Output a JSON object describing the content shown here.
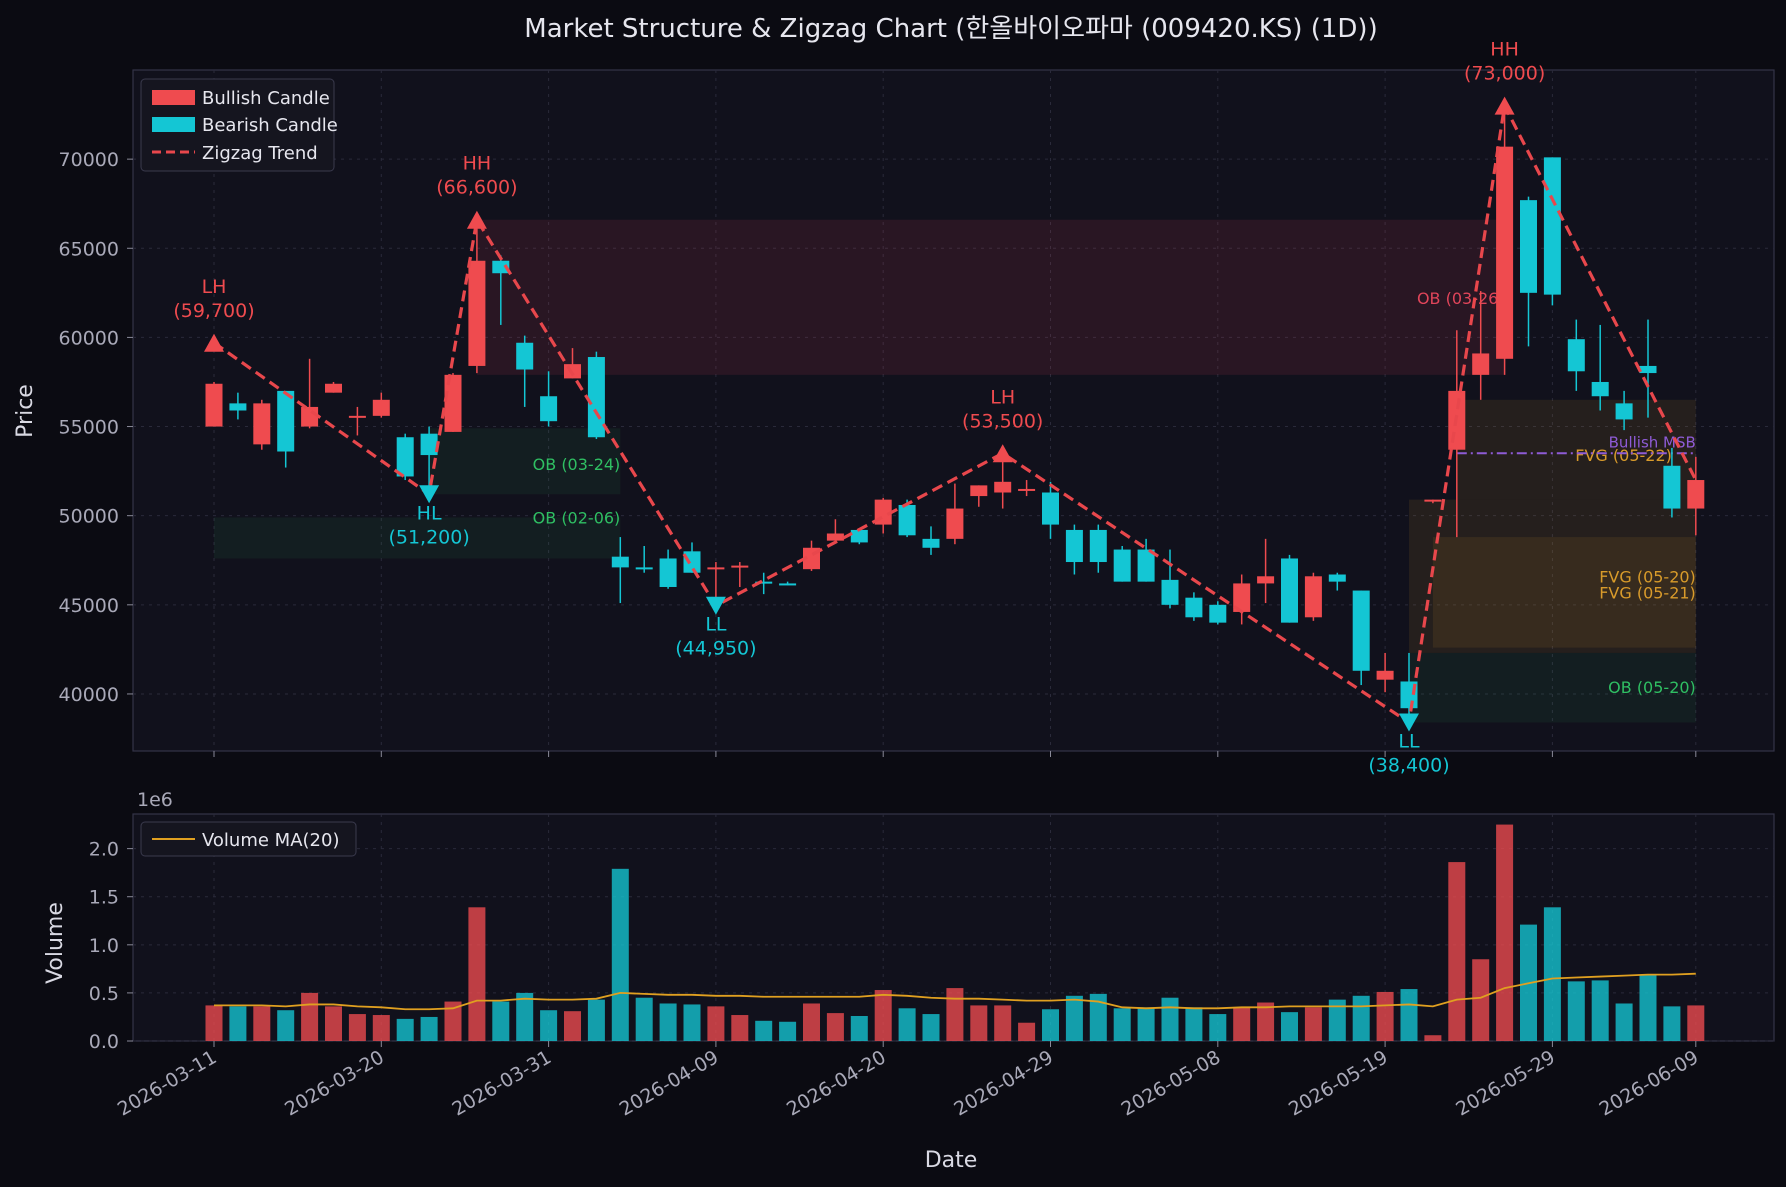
{
  "title": "Market Structure & Zigzag Chart (한올바이오파마 (009420.KS) (1D))",
  "colors": {
    "bull": "#ef4b4f",
    "bear": "#14c6d4",
    "zigzag": "#e8474c",
    "ob_bull": "#2fbf63",
    "ob_bear": "#e0455a",
    "fvg": "#d99b2b",
    "msb": "#8e5bd6",
    "vol_ma": "#e0a020"
  },
  "price_axis": {
    "label": "Price",
    "ylim": [
      36800,
      75000
    ],
    "ticks": [
      40000,
      45000,
      50000,
      55000,
      60000,
      65000,
      70000
    ]
  },
  "volume_axis": {
    "label": "Volume",
    "multiplier": "1e6",
    "ylim": [
      0,
      2.36
    ],
    "ticks": [
      "0.0",
      "0.5",
      "1.0",
      "1.5",
      "2.0"
    ]
  },
  "x_axis": {
    "label": "Date",
    "ticks": [
      {
        "i": 0,
        "label": "2026-03-11"
      },
      {
        "i": 7,
        "label": "2026-03-20"
      },
      {
        "i": 14,
        "label": "2026-03-31"
      },
      {
        "i": 21,
        "label": "2026-04-09"
      },
      {
        "i": 28,
        "label": "2026-04-20"
      },
      {
        "i": 35,
        "label": "2026-04-29"
      },
      {
        "i": 42,
        "label": "2026-05-08"
      },
      {
        "i": 49,
        "label": "2026-05-19"
      },
      {
        "i": 56,
        "label": "2026-05-29"
      },
      {
        "i": 62,
        "label": "2026-06-09"
      }
    ]
  },
  "legend_price": [
    {
      "label": "Bullish Candle",
      "kind": "bull"
    },
    {
      "label": "Bearish Candle",
      "kind": "bear"
    },
    {
      "label": "Zigzag Trend",
      "kind": "zigzag"
    }
  ],
  "legend_volume": [
    {
      "label": "Volume MA(20)",
      "kind": "vol_ma"
    }
  ],
  "chart_data": {
    "type": "candlestick",
    "candles": [
      {
        "o": 55000,
        "h": 57500,
        "l": 55000,
        "c": 57400
      },
      {
        "o": 56300,
        "h": 56900,
        "l": 55400,
        "c": 55900
      },
      {
        "o": 54000,
        "h": 56500,
        "l": 53700,
        "c": 56300
      },
      {
        "o": 57000,
        "h": 57000,
        "l": 52700,
        "c": 53600
      },
      {
        "o": 55000,
        "h": 58800,
        "l": 54900,
        "c": 56100
      },
      {
        "o": 56900,
        "h": 57500,
        "l": 56900,
        "c": 57400
      },
      {
        "o": 55600,
        "h": 56100,
        "l": 54500,
        "c": 55600
      },
      {
        "o": 55600,
        "h": 56900,
        "l": 55500,
        "c": 56500
      },
      {
        "o": 54400,
        "h": 54600,
        "l": 52000,
        "c": 52200
      },
      {
        "o": 54600,
        "h": 55000,
        "l": 51200,
        "c": 53400
      },
      {
        "o": 54700,
        "h": 58000,
        "l": 54700,
        "c": 57900
      },
      {
        "o": 58400,
        "h": 66600,
        "l": 58000,
        "c": 64300
      },
      {
        "o": 64300,
        "h": 64600,
        "l": 60700,
        "c": 63600
      },
      {
        "o": 59700,
        "h": 60100,
        "l": 56100,
        "c": 58200
      },
      {
        "o": 56700,
        "h": 58100,
        "l": 55000,
        "c": 55300
      },
      {
        "o": 57700,
        "h": 59400,
        "l": 57700,
        "c": 58500
      },
      {
        "o": 58900,
        "h": 59200,
        "l": 54300,
        "c": 54400
      },
      {
        "o": 47700,
        "h": 48800,
        "l": 45100,
        "c": 47100
      },
      {
        "o": 47100,
        "h": 48300,
        "l": 46800,
        "c": 47000
      },
      {
        "o": 47600,
        "h": 48100,
        "l": 45900,
        "c": 46000
      },
      {
        "o": 48000,
        "h": 48500,
        "l": 46800,
        "c": 46800
      },
      {
        "o": 47100,
        "h": 47400,
        "l": 44950,
        "c": 47100
      },
      {
        "o": 47100,
        "h": 47400,
        "l": 46000,
        "c": 47200
      },
      {
        "o": 46300,
        "h": 46800,
        "l": 45600,
        "c": 46200
      },
      {
        "o": 46200,
        "h": 46300,
        "l": 46100,
        "c": 46100
      },
      {
        "o": 47000,
        "h": 48600,
        "l": 46900,
        "c": 48200
      },
      {
        "o": 48600,
        "h": 49800,
        "l": 48500,
        "c": 49000
      },
      {
        "o": 49200,
        "h": 49300,
        "l": 48400,
        "c": 48500
      },
      {
        "o": 49500,
        "h": 51000,
        "l": 49000,
        "c": 50900
      },
      {
        "o": 50600,
        "h": 50900,
        "l": 48800,
        "c": 48900
      },
      {
        "o": 48700,
        "h": 49400,
        "l": 47800,
        "c": 48200
      },
      {
        "o": 48700,
        "h": 51800,
        "l": 48400,
        "c": 50400
      },
      {
        "o": 51100,
        "h": 51700,
        "l": 50500,
        "c": 51700
      },
      {
        "o": 51300,
        "h": 53500,
        "l": 50400,
        "c": 51900
      },
      {
        "o": 51400,
        "h": 52000,
        "l": 51100,
        "c": 51500
      },
      {
        "o": 51300,
        "h": 51900,
        "l": 48700,
        "c": 49500
      },
      {
        "o": 49200,
        "h": 49500,
        "l": 46700,
        "c": 47400
      },
      {
        "o": 49200,
        "h": 49500,
        "l": 46800,
        "c": 47400
      },
      {
        "o": 48100,
        "h": 48300,
        "l": 46300,
        "c": 46300
      },
      {
        "o": 48100,
        "h": 48700,
        "l": 46300,
        "c": 46300
      },
      {
        "o": 46400,
        "h": 48100,
        "l": 44800,
        "c": 45000
      },
      {
        "o": 45400,
        "h": 45700,
        "l": 44100,
        "c": 44300
      },
      {
        "o": 45000,
        "h": 45200,
        "l": 43900,
        "c": 44000
      },
      {
        "o": 44600,
        "h": 46700,
        "l": 43900,
        "c": 46200
      },
      {
        "o": 46200,
        "h": 48700,
        "l": 45100,
        "c": 46600
      },
      {
        "o": 47600,
        "h": 47800,
        "l": 44000,
        "c": 44000
      },
      {
        "o": 44300,
        "h": 46800,
        "l": 44100,
        "c": 46600
      },
      {
        "o": 46700,
        "h": 46800,
        "l": 45800,
        "c": 46300
      },
      {
        "o": 45800,
        "h": 45800,
        "l": 40500,
        "c": 41300
      },
      {
        "o": 40800,
        "h": 42300,
        "l": 40100,
        "c": 41300
      },
      {
        "o": 40700,
        "h": 42300,
        "l": 38400,
        "c": 39200
      },
      {
        "o": 50900,
        "h": 50900,
        "l": 50700,
        "c": 50900
      },
      {
        "o": 53700,
        "h": 60400,
        "l": 48800,
        "c": 57000
      },
      {
        "o": 57900,
        "h": 62600,
        "l": 56500,
        "c": 59100
      },
      {
        "o": 58800,
        "h": 73000,
        "l": 57900,
        "c": 70700
      },
      {
        "o": 67700,
        "h": 67900,
        "l": 59500,
        "c": 62500
      },
      {
        "o": 70100,
        "h": 70100,
        "l": 61800,
        "c": 62400
      },
      {
        "o": 59900,
        "h": 61000,
        "l": 57000,
        "c": 58100
      },
      {
        "o": 57500,
        "h": 60700,
        "l": 55900,
        "c": 56700
      },
      {
        "o": 56300,
        "h": 57000,
        "l": 54800,
        "c": 55400
      },
      {
        "o": 58400,
        "h": 61000,
        "l": 55500,
        "c": 58000
      },
      {
        "o": 52800,
        "h": 53800,
        "l": 49900,
        "c": 50400
      },
      {
        "o": 50400,
        "h": 53300,
        "l": 48900,
        "c": 52000
      }
    ],
    "volume": [
      0.37,
      0.36,
      0.36,
      0.32,
      0.5,
      0.36,
      0.28,
      0.27,
      0.23,
      0.25,
      0.41,
      1.39,
      0.41,
      0.5,
      0.32,
      0.31,
      0.43,
      1.79,
      0.45,
      0.39,
      0.38,
      0.36,
      0.27,
      0.21,
      0.2,
      0.39,
      0.29,
      0.26,
      0.53,
      0.34,
      0.28,
      0.55,
      0.37,
      0.37,
      0.19,
      0.33,
      0.47,
      0.49,
      0.34,
      0.35,
      0.45,
      0.35,
      0.28,
      0.35,
      0.4,
      0.3,
      0.35,
      0.43,
      0.47,
      0.51,
      0.54,
      0.06,
      1.86,
      0.85,
      2.25,
      1.21,
      1.39,
      0.62,
      0.63,
      0.39,
      0.69,
      0.36,
      0.37
    ],
    "volume_ma": [
      0.37,
      0.37,
      0.37,
      0.36,
      0.38,
      0.38,
      0.36,
      0.35,
      0.33,
      0.33,
      0.34,
      0.42,
      0.42,
      0.44,
      0.43,
      0.43,
      0.44,
      0.5,
      0.49,
      0.48,
      0.48,
      0.47,
      0.47,
      0.46,
      0.46,
      0.46,
      0.46,
      0.46,
      0.48,
      0.47,
      0.45,
      0.44,
      0.44,
      0.43,
      0.42,
      0.42,
      0.43,
      0.41,
      0.35,
      0.34,
      0.35,
      0.34,
      0.34,
      0.35,
      0.35,
      0.36,
      0.36,
      0.36,
      0.36,
      0.37,
      0.38,
      0.36,
      0.43,
      0.45,
      0.55,
      0.6,
      0.65,
      0.66,
      0.67,
      0.68,
      0.69,
      0.69,
      0.7
    ],
    "zigzag": [
      {
        "i": 0,
        "p": 59700,
        "type": "LH",
        "label": "(59,700)",
        "pos": "above"
      },
      {
        "i": 9,
        "p": 51200,
        "type": "HL",
        "label": "(51,200)",
        "pos": "below"
      },
      {
        "i": 11,
        "p": 66600,
        "type": "HH",
        "label": "(66,600)",
        "pos": "above"
      },
      {
        "i": 21,
        "p": 44950,
        "type": "LL",
        "label": "(44,950)",
        "pos": "below"
      },
      {
        "i": 33,
        "p": 53500,
        "type": "LH",
        "label": "(53,500)",
        "pos": "above"
      },
      {
        "i": 50,
        "p": 38400,
        "type": "LL",
        "label": "(38,400)",
        "pos": "below"
      },
      {
        "i": 54,
        "p": 73000,
        "type": "HH",
        "label": "(73,000)",
        "pos": "above"
      },
      {
        "i": 62,
        "p": 52000,
        "type": "",
        "label": "",
        "pos": "none"
      }
    ],
    "zones": [
      {
        "kind": "ob_bear",
        "label": "OB (03-26)",
        "x0": 11,
        "x1": 54,
        "y0": 57900,
        "y1": 66600,
        "label_i": 54,
        "label_y": 62200,
        "align": "end"
      },
      {
        "kind": "ob_bull",
        "label": "OB (03-24)",
        "x0": 9,
        "x1": 17,
        "y0": 51200,
        "y1": 54900,
        "label_i": 17,
        "label_y": 52900,
        "align": "end"
      },
      {
        "kind": "ob_bull",
        "label": "OB (02-06)",
        "x0": 0,
        "x1": 17,
        "y0": 47600,
        "y1": 49900,
        "label_i": 17,
        "label_y": 49900,
        "align": "end"
      },
      {
        "kind": "ob_bull",
        "label": "OB (05-20)",
        "x0": 50,
        "x1": 62,
        "y0": 38400,
        "y1": 42300,
        "label_i": 62,
        "label_y": 40400,
        "align": "end"
      },
      {
        "kind": "fvg",
        "label": "FVG (05-20)",
        "x0": 50,
        "x1": 62,
        "y0": 42300,
        "y1": 50900,
        "label_i": 62,
        "label_y": 46600,
        "align": "end"
      },
      {
        "kind": "fvg",
        "label": "FVG (05-21)",
        "x0": 51,
        "x1": 62,
        "y0": 42600,
        "y1": 48800,
        "label_i": 62,
        "label_y": 45700,
        "align": "end"
      },
      {
        "kind": "fvg",
        "label": "FVG (05-22)",
        "x0": 52,
        "x1": 62,
        "y0": 50900,
        "y1": 56500,
        "label_i": 61,
        "label_y": 53400,
        "align": "end"
      }
    ],
    "msb": {
      "label": "Bullish MSB",
      "x0": 52,
      "x1": 62,
      "y": 53500
    }
  }
}
